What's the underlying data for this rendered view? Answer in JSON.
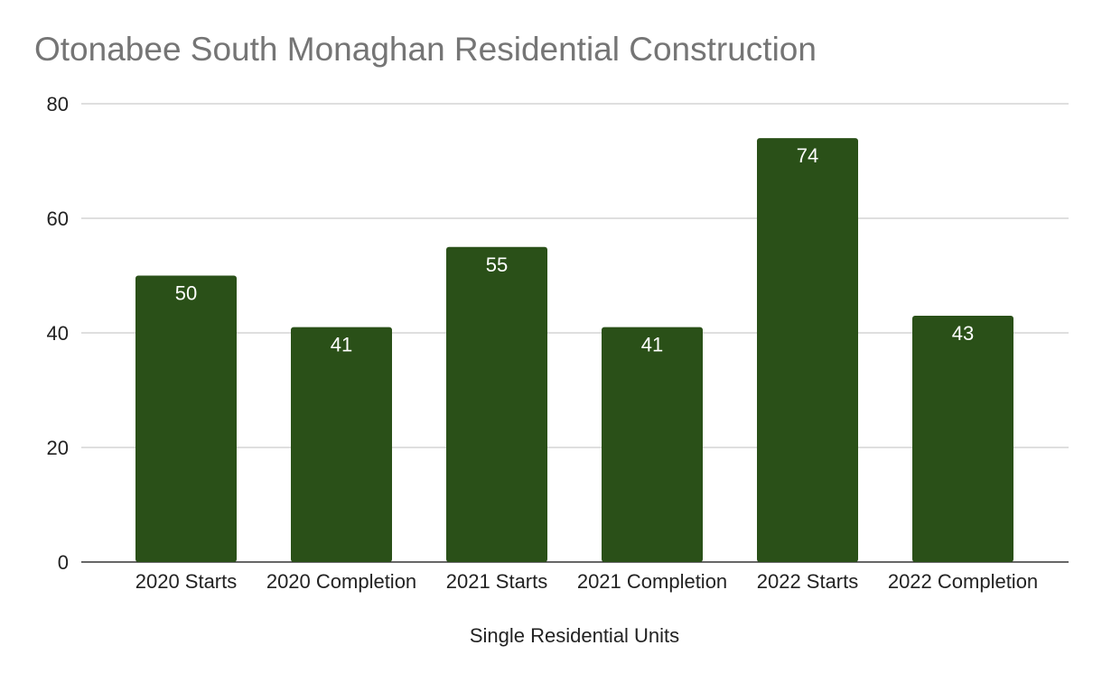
{
  "chart_data": {
    "type": "bar",
    "title": "Otonabee South Monaghan Residential Construction",
    "xlabel": "Single Residential Units",
    "ylabel": "",
    "categories": [
      "2020 Starts",
      "2020 Completion",
      "2021 Starts",
      "2021 Completion",
      "2022 Starts",
      "2022 Completion"
    ],
    "values": [
      50,
      41,
      55,
      41,
      74,
      43
    ],
    "ylim": [
      0,
      80
    ],
    "yticks": [
      0,
      20,
      40,
      60,
      80
    ],
    "grid": true,
    "bar_color": "#2a5018",
    "data_label_color": "#ffffff",
    "legend": "none"
  }
}
